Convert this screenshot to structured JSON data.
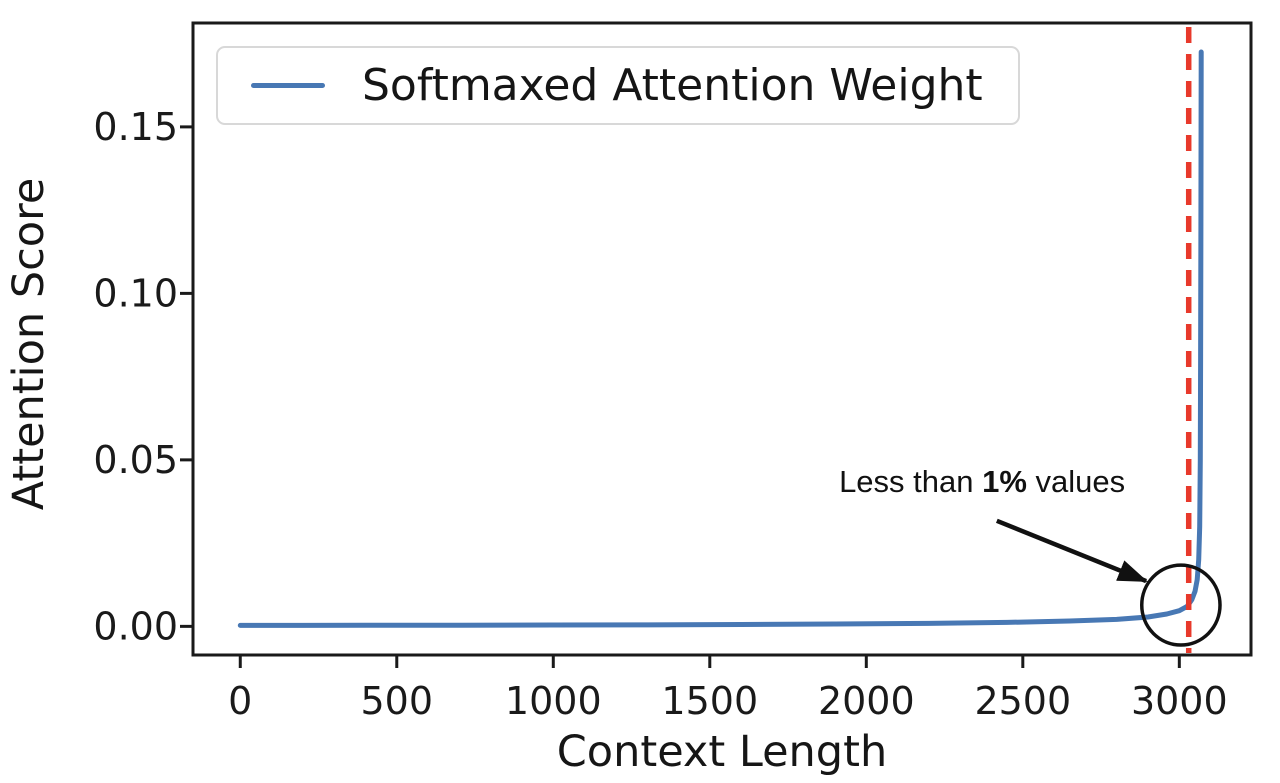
{
  "chart_data": {
    "type": "line",
    "xlabel": "Context Length",
    "ylabel": "Attention Score",
    "xlim": [
      -151,
      3229
    ],
    "ylim": [
      -0.0086,
      0.1812
    ],
    "xticks": [
      0,
      500,
      1000,
      1500,
      2000,
      2500,
      3000
    ],
    "yticks": [
      {
        "v": 0.0,
        "label": "0.00"
      },
      {
        "v": 0.05,
        "label": "0.05"
      },
      {
        "v": 0.1,
        "label": "0.10"
      },
      {
        "v": 0.15,
        "label": "0.15"
      }
    ],
    "grid": false,
    "legend_position": "upper left",
    "series": [
      {
        "name": "Softmaxed Attention Weight",
        "color": "#4878b4",
        "points": [
          [
            0,
            0.0003
          ],
          [
            200,
            0.0003
          ],
          [
            400,
            0.00032
          ],
          [
            700,
            0.00035
          ],
          [
            1000,
            0.0004
          ],
          [
            1300,
            0.00045
          ],
          [
            1600,
            0.00055
          ],
          [
            1900,
            0.0007
          ],
          [
            2200,
            0.0009
          ],
          [
            2450,
            0.0012
          ],
          [
            2650,
            0.0016
          ],
          [
            2800,
            0.0021
          ],
          [
            2900,
            0.0028
          ],
          [
            2960,
            0.0037
          ],
          [
            3000,
            0.0047
          ],
          [
            3025,
            0.006
          ],
          [
            3040,
            0.008
          ],
          [
            3050,
            0.0105
          ],
          [
            3057,
            0.014
          ],
          [
            3062,
            0.02
          ],
          [
            3065,
            0.03
          ],
          [
            3067,
            0.05
          ],
          [
            3068,
            0.08
          ],
          [
            3069,
            0.12
          ],
          [
            3070,
            0.1725
          ]
        ]
      }
    ],
    "vline": {
      "x": 3030,
      "color": "#e8392b",
      "style": "dashed"
    },
    "annotation": {
      "text_regular_1": "Less than ",
      "text_bold": "1%",
      "text_regular_2": " values",
      "text_anchor": {
        "x": 2370,
        "y": 0.0434
      },
      "arrow": {
        "from": {
          "x": 2417,
          "y": 0.0317
        },
        "to": {
          "x": 2894,
          "y": 0.0136
        }
      },
      "circle": {
        "x": 3005,
        "y": 0.0064,
        "rx": 125,
        "ry": 0.012
      }
    },
    "colors": {
      "line": "#4878b4",
      "threshold": "#e8392b",
      "annotation": "#111111"
    }
  }
}
